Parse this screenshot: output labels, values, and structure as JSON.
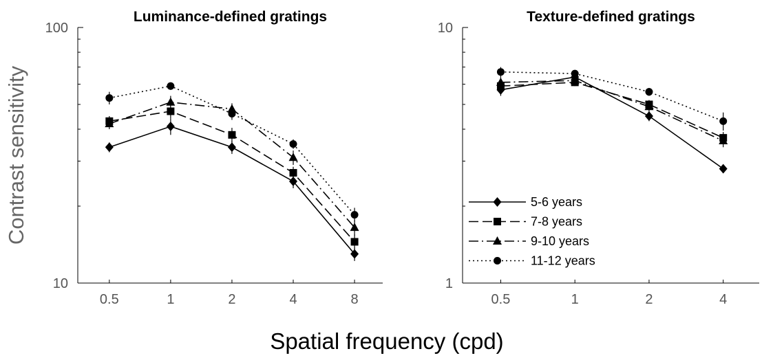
{
  "figure": {
    "ylabel": "Contrast sensitivity",
    "xlabel": "Spatial frequency (cpd)"
  },
  "chart_data": [
    {
      "type": "line",
      "title": "Luminance-defined gratings",
      "x_scale": "log2",
      "y_scale": "log10",
      "x": [
        0.5,
        1,
        2,
        4,
        8
      ],
      "x_tick_labels": [
        "0.5",
        "1",
        "2",
        "4",
        "8"
      ],
      "xlim": [
        0.35,
        11
      ],
      "ylim": [
        10,
        100
      ],
      "y_tick_values": [
        10,
        100
      ],
      "y_tick_labels": [
        "10",
        "100"
      ],
      "series": [
        {
          "name": "5-6 years",
          "marker": "diamond",
          "dash": "solid",
          "values": [
            34,
            41,
            34,
            25,
            13
          ],
          "err": [
            1.5,
            3,
            2,
            1.5,
            0.8
          ]
        },
        {
          "name": "7-8 years",
          "marker": "square",
          "dash": "long-dash",
          "values": [
            43,
            47,
            38,
            27,
            14.5
          ],
          "err": [
            2,
            3,
            2.5,
            1.5,
            1
          ]
        },
        {
          "name": "9-10 years",
          "marker": "triangle",
          "dash": "dash-dot",
          "values": [
            42,
            51,
            48,
            31,
            16.5
          ],
          "err": [
            2,
            3,
            2.5,
            2,
            1.2
          ]
        },
        {
          "name": "11-12 years",
          "marker": "circle",
          "dash": "dotted",
          "values": [
            53,
            59,
            46,
            35,
            18.5
          ],
          "err": [
            3,
            2,
            2.5,
            1.5,
            1.2
          ]
        }
      ]
    },
    {
      "type": "line",
      "title": "Texture-defined gratings",
      "x_scale": "log2",
      "y_scale": "log10",
      "x": [
        0.5,
        1,
        2,
        4
      ],
      "x_tick_labels": [
        "0.5",
        "1",
        "2",
        "4"
      ],
      "xlim": [
        0.35,
        5.6
      ],
      "ylim": [
        1,
        10
      ],
      "y_tick_values": [
        1,
        10
      ],
      "y_tick_labels": [
        "1",
        "10"
      ],
      "legend_position": "lower-left",
      "series": [
        {
          "name": "5-6 years",
          "marker": "diamond",
          "dash": "solid",
          "values": [
            5.7,
            6.4,
            4.5,
            2.8
          ],
          "err": [
            0.3,
            0.2,
            0.2,
            0.1
          ]
        },
        {
          "name": "7-8 years",
          "marker": "square",
          "dash": "long-dash",
          "values": [
            5.9,
            6.1,
            5.0,
            3.7
          ],
          "err": [
            0.3,
            0.2,
            0.2,
            0.2
          ]
        },
        {
          "name": "9-10 years",
          "marker": "triangle",
          "dash": "dash-dot",
          "values": [
            6.1,
            6.2,
            4.9,
            3.6
          ],
          "err": [
            0.3,
            0.2,
            0.2,
            0.2
          ]
        },
        {
          "name": "11-12 years",
          "marker": "circle",
          "dash": "dotted",
          "values": [
            6.7,
            6.6,
            5.6,
            4.3
          ],
          "err": [
            0.3,
            0.2,
            0.2,
            0.35
          ]
        }
      ]
    }
  ]
}
